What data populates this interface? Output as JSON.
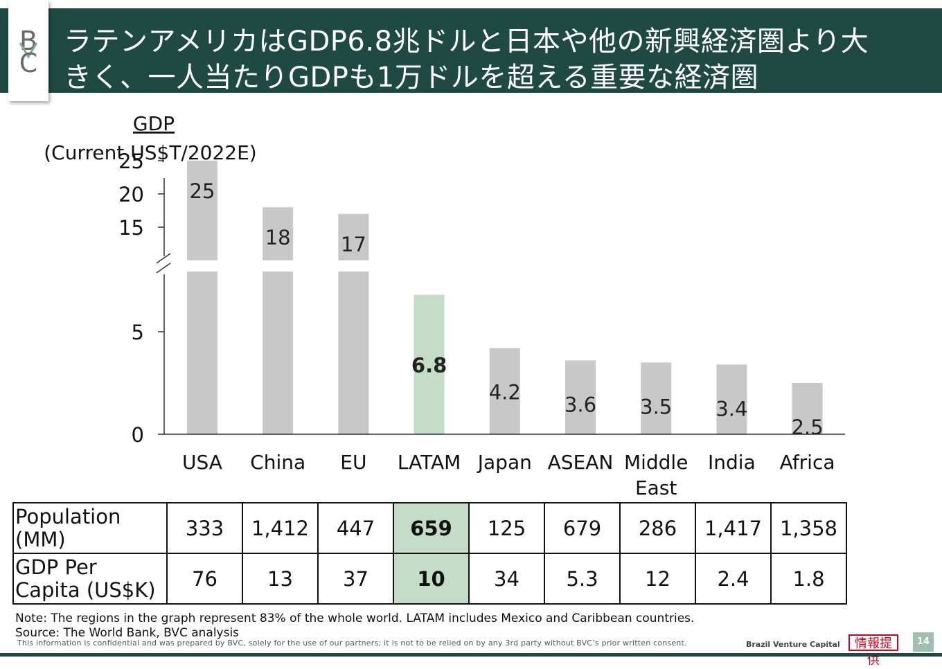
{
  "header": {
    "title_line1": "ラテンアメリカはGDP6.8兆ドルと日本や他の新興経済圏より大",
    "title_line2": "きく、一人当たりGDPも1万ドルを超える重要な経済圏",
    "logo_letters": [
      "B",
      "C"
    ]
  },
  "chart_data": {
    "type": "bar",
    "title": "GDP",
    "subtitle": "(Current US$T/2022E)",
    "categories": [
      "USA",
      "China",
      "EU",
      "LATAM",
      "Japan",
      "ASEAN",
      "Middle East",
      "India",
      "Africa"
    ],
    "series": [
      {
        "values": [
          25,
          18,
          17,
          6.8,
          4.2,
          3.6,
          3.5,
          3.4,
          2.5
        ]
      }
    ],
    "data_labels": [
      "25",
      "18",
      "17",
      "6.8",
      "4.2",
      "3.6",
      "3.5",
      "3.4",
      "2.5"
    ],
    "highlight_category": "LATAM",
    "y_axis": {
      "lower_ticks": [
        0,
        5
      ],
      "upper_ticks": [
        15,
        20,
        25
      ],
      "break": true
    },
    "colors": {
      "bar": "#c8c8c8",
      "highlight": "#c5dcc9"
    }
  },
  "table": {
    "rows": [
      {
        "label": "Population (MM)",
        "values": [
          "333",
          "1,412",
          "447",
          "659",
          "125",
          "679",
          "286",
          "1,417",
          "1,358"
        ]
      },
      {
        "label": "GDP Per Capita (US$K)",
        "values": [
          "76",
          "13",
          "37",
          "10",
          "34",
          "5.3",
          "12",
          "2.4",
          "1.8"
        ]
      }
    ],
    "highlight_index": 3
  },
  "footer": {
    "note": "Note: The regions in the graph represent 83% of the whole world. LATAM includes Mexico and Caribbean countries.",
    "source": "Source: The World Bank, BVC analysis",
    "confidential": "This information is confidential and was prepared by BVC, solely for the use of our partners; it is not to be relied on by any 3rd party without BVC’s prior written consent.",
    "brand": "Brazil Venture Capital",
    "stamp": "情報提供",
    "page_number": "14"
  },
  "colors": {
    "header_bg": "#1f4a44",
    "accent_green": "#c5dcc9",
    "stamp_red": "#d0021b"
  }
}
